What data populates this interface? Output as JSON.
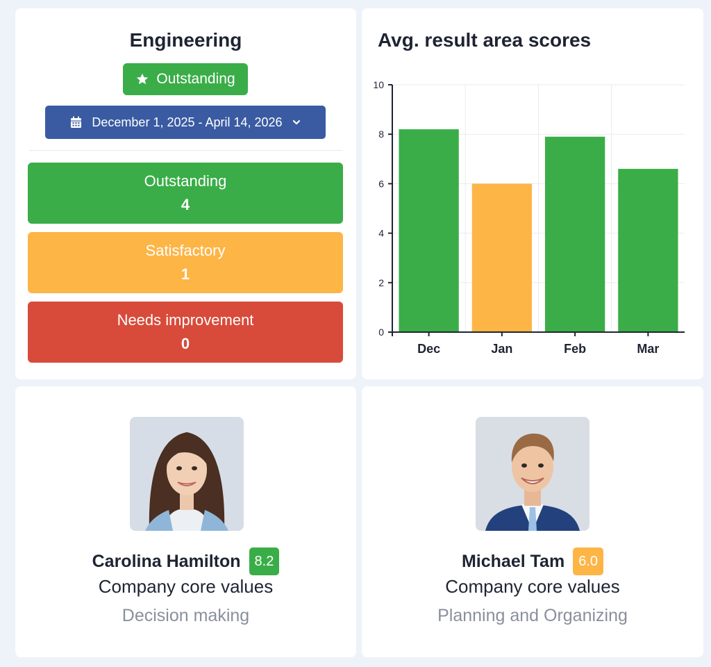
{
  "summary": {
    "team_name": "Engineering",
    "overall_rating": "Outstanding",
    "date_range": "December 1, 2025 - April 14, 2026",
    "stats": [
      {
        "label": "Outstanding",
        "count": "4",
        "color": "#3aad48"
      },
      {
        "label": "Satisfactory",
        "count": "1",
        "color": "#fdb546"
      },
      {
        "label": "Needs improvement",
        "count": "0",
        "color": "#d84a3a"
      }
    ]
  },
  "chart": {
    "title": "Avg. result area scores"
  },
  "chart_data": {
    "type": "bar",
    "categories": [
      "Dec",
      "Jan",
      "Feb",
      "Mar"
    ],
    "values": [
      8.2,
      6.0,
      7.9,
      6.6
    ],
    "colors": [
      "#3aad48",
      "#fdb546",
      "#3aad48",
      "#3aad48"
    ],
    "ylim": [
      0,
      10
    ],
    "yticks": [
      0,
      2,
      4,
      6,
      8,
      10
    ],
    "grid": true,
    "legend": "none",
    "xlabel": "",
    "ylabel": ""
  },
  "people": [
    {
      "name": "Carolina Hamilton",
      "score": "8.2",
      "score_color": "#3aad48",
      "category": "Company core values",
      "area": "Decision making"
    },
    {
      "name": "Michael Tam",
      "score": "6.0",
      "score_color": "#fdb546",
      "category": "Company core values",
      "area": "Planning and Organizing"
    }
  ],
  "icons": {
    "rating": "star-icon",
    "date": "calendar-icon",
    "dropdown": "chevron-down-icon"
  }
}
